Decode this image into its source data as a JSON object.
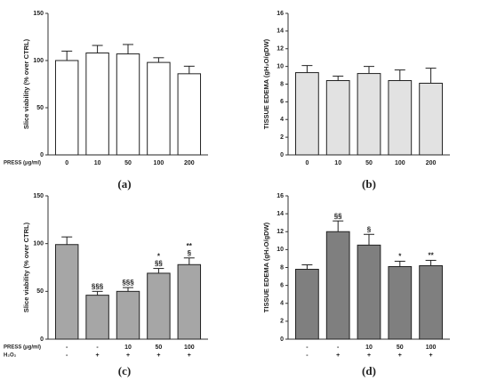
{
  "chart_data": [
    {
      "type": "bar",
      "panel": "(a)",
      "ylabel": "Slice viability (% over CTRL)",
      "ylim": [
        0,
        150
      ],
      "yticks": [
        0,
        50,
        100,
        150
      ],
      "color": "#ffffff",
      "category_rows": [
        {
          "name": "PRESS (μg/ml)",
          "labels": [
            "0",
            "10",
            "50",
            "100",
            "200"
          ]
        }
      ],
      "values": [
        100,
        108,
        107,
        98,
        86
      ],
      "errors": [
        10,
        8,
        10,
        5,
        8
      ],
      "annotations": [
        [],
        [],
        [],
        [],
        []
      ]
    },
    {
      "type": "bar",
      "panel": "(b)",
      "ylabel": "TISSUE EDEMA (gH₂O/gDW)",
      "ylim": [
        0,
        16
      ],
      "yticks": [
        0,
        2,
        4,
        6,
        8,
        10,
        12,
        14,
        16
      ],
      "color": "#e2e2e2",
      "category_rows": [
        {
          "labels": [
            "0",
            "10",
            "50",
            "100",
            "200"
          ]
        }
      ],
      "values": [
        9.3,
        8.4,
        9.2,
        8.4,
        8.1
      ],
      "errors": [
        0.8,
        0.5,
        0.8,
        1.2,
        1.7
      ],
      "annotations": [
        [],
        [],
        [],
        [],
        []
      ]
    },
    {
      "type": "bar",
      "panel": "(c)",
      "ylabel": "Slice viability (% over CTRL)",
      "ylim": [
        0,
        150
      ],
      "yticks": [
        0,
        50,
        100,
        150
      ],
      "color": "#a6a6a6",
      "category_rows": [
        {
          "name": "PRESS (μg/ml)",
          "labels": [
            "-",
            "-",
            "10",
            "50",
            "100"
          ]
        },
        {
          "name": "H₂O₂",
          "labels": [
            "-",
            "+",
            "+",
            "+",
            "+"
          ]
        }
      ],
      "values": [
        99,
        46,
        50,
        69,
        78
      ],
      "errors": [
        8,
        4,
        4,
        5,
        7
      ],
      "annotations": [
        [],
        [
          "§§§"
        ],
        [
          "§§§"
        ],
        [
          "*",
          "§§"
        ],
        [
          "**",
          "§"
        ]
      ]
    },
    {
      "type": "bar",
      "panel": "(d)",
      "ylabel": "TISSUE EDEMA (gH₂O/gDW)",
      "ylim": [
        0,
        16
      ],
      "yticks": [
        0,
        2,
        4,
        6,
        8,
        10,
        12,
        14,
        16
      ],
      "color": "#7f7f7f",
      "category_rows": [
        {
          "labels": [
            "-",
            "-",
            "10",
            "50",
            "100"
          ]
        },
        {
          "labels": [
            "-",
            "+",
            "+",
            "+",
            "+"
          ]
        }
      ],
      "values": [
        7.8,
        12,
        10.5,
        8.1,
        8.2
      ],
      "errors": [
        0.5,
        1.2,
        1.2,
        0.6,
        0.6
      ],
      "annotations": [
        [],
        [
          "§§"
        ],
        [
          "§"
        ],
        [
          "*"
        ],
        [
          "**"
        ]
      ]
    }
  ]
}
